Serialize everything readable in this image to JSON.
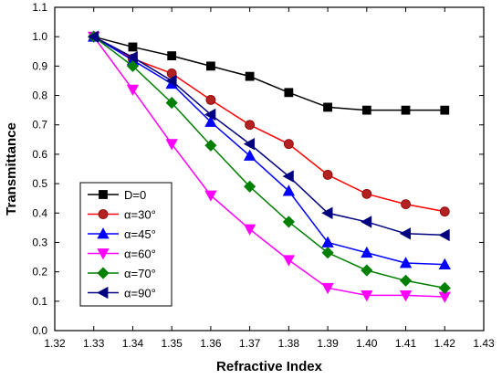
{
  "chart_data": {
    "type": "line",
    "title": "",
    "xlabel": "Refractive Index",
    "ylabel": "Transmittance",
    "xlim": [
      1.32,
      1.43
    ],
    "ylim": [
      0.0,
      1.1
    ],
    "xticks": [
      "1.32",
      "1.33",
      "1.34",
      "1.35",
      "1.36",
      "1.37",
      "1.38",
      "1.39",
      "1.40",
      "1.41",
      "1.42",
      "1.43"
    ],
    "yticks": [
      "0.0",
      "0.1",
      "0.2",
      "0.3",
      "0.4",
      "0.5",
      "0.6",
      "0.7",
      "0.8",
      "0.9",
      "1.0",
      "1.1"
    ],
    "grid": false,
    "legend_position": "bottom-left",
    "x": [
      1.33,
      1.34,
      1.35,
      1.36,
      1.37,
      1.38,
      1.39,
      1.4,
      1.41,
      1.42
    ],
    "series": [
      {
        "name": "D=0",
        "color": "#000000",
        "marker": "square",
        "values": [
          1.0,
          0.965,
          0.935,
          0.9,
          0.865,
          0.81,
          0.76,
          0.75,
          0.75,
          0.75
        ]
      },
      {
        "name": "α=30°",
        "color": "#ff0000",
        "marker": "circle",
        "values": [
          1.0,
          0.925,
          0.875,
          0.785,
          0.7,
          0.635,
          0.53,
          0.465,
          0.43,
          0.405
        ]
      },
      {
        "name": "α=45°",
        "color": "#0000ff",
        "marker": "triangle-up",
        "values": [
          1.0,
          0.92,
          0.84,
          0.71,
          0.595,
          0.475,
          0.3,
          0.265,
          0.23,
          0.225
        ]
      },
      {
        "name": "α=60°",
        "color": "#ff00ff",
        "marker": "triangle-down",
        "values": [
          1.0,
          0.82,
          0.635,
          0.46,
          0.345,
          0.24,
          0.145,
          0.12,
          0.12,
          0.115
        ]
      },
      {
        "name": "α=70°",
        "color": "#008000",
        "marker": "diamond",
        "values": [
          1.0,
          0.9,
          0.775,
          0.63,
          0.49,
          0.37,
          0.265,
          0.205,
          0.17,
          0.145
        ]
      },
      {
        "name": "α=90°",
        "color": "#000080",
        "marker": "triangle-left",
        "values": [
          1.0,
          0.93,
          0.85,
          0.735,
          0.635,
          0.525,
          0.4,
          0.37,
          0.33,
          0.325
        ]
      }
    ]
  }
}
